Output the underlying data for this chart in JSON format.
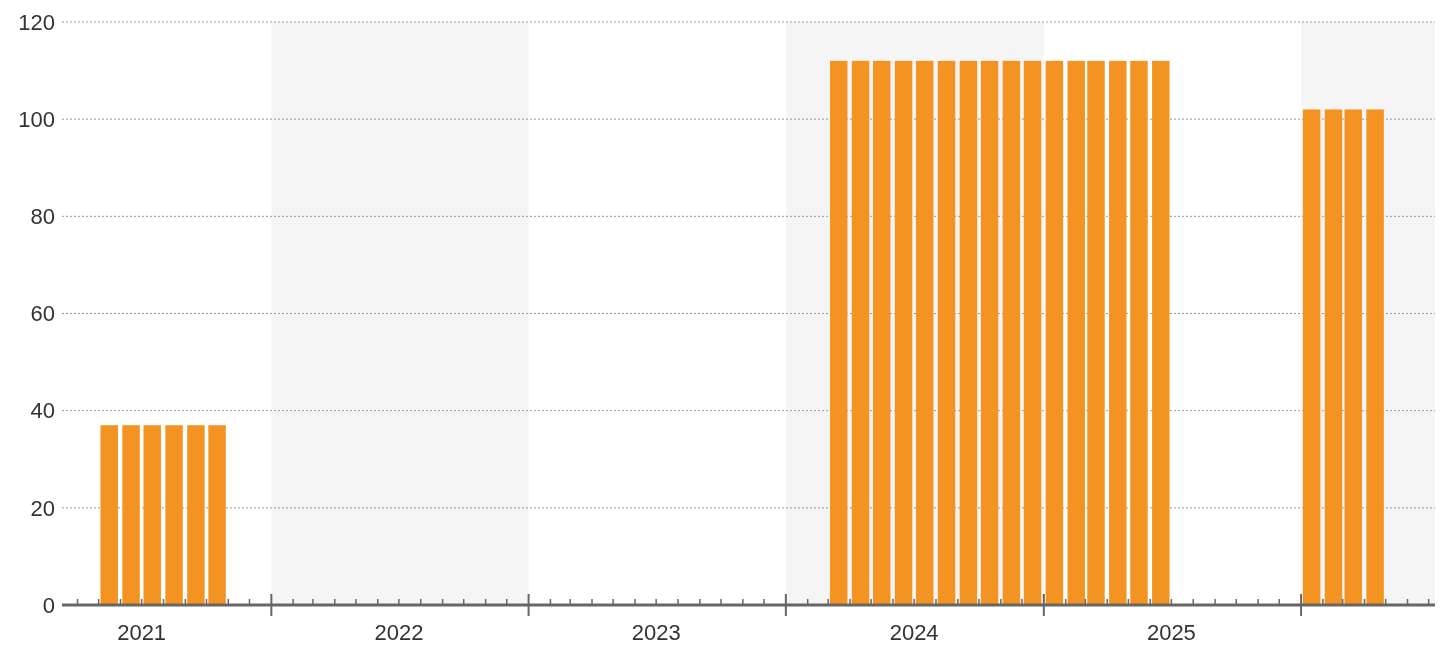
{
  "chart_data": {
    "type": "bar",
    "x": [
      "2021-05-16",
      "2021-06-16",
      "2021-07-16",
      "2021-08-16",
      "2021-09-16",
      "2021-10-16",
      "2024-03-16",
      "2024-04-16",
      "2024-05-16",
      "2024-06-16",
      "2024-07-16",
      "2024-08-16",
      "2024-09-16",
      "2024-10-16",
      "2024-11-16",
      "2024-12-16",
      "2025-01-16",
      "2025-02-16",
      "2025-03-16",
      "2025-04-16",
      "2025-05-16",
      "2025-06-16",
      "2026-01-16",
      "2026-02-16",
      "2026-03-16",
      "2026-04-16"
    ],
    "values": [
      37,
      37,
      37,
      37,
      37,
      37,
      112,
      112,
      112,
      112,
      112,
      112,
      112,
      112,
      112,
      112,
      112,
      112,
      112,
      112,
      112,
      112,
      102,
      102,
      102,
      102
    ],
    "color": "#f39322",
    "xlim": [
      "2021-03-10",
      "2026-07-10"
    ],
    "xticks": [
      {
        "value": "2021-04-01",
        "label": null
      },
      {
        "value": "2021-05-01",
        "label": null
      },
      {
        "value": "2021-06-01",
        "label": null
      },
      {
        "value": "2021-07-01",
        "label": "2021"
      },
      {
        "value": "2021-08-01",
        "label": null
      },
      {
        "value": "2021-09-01",
        "label": null
      },
      {
        "value": "2021-10-01",
        "label": null
      },
      {
        "value": "2021-11-01",
        "label": null
      },
      {
        "value": "2021-12-01",
        "label": null
      },
      {
        "value": "2022-01-01",
        "label": null
      },
      {
        "value": "2022-02-01",
        "label": null
      },
      {
        "value": "2022-03-01",
        "label": null
      },
      {
        "value": "2022-04-01",
        "label": null
      },
      {
        "value": "2022-05-01",
        "label": null
      },
      {
        "value": "2022-06-01",
        "label": null
      },
      {
        "value": "2022-07-01",
        "label": "2022"
      },
      {
        "value": "2022-08-01",
        "label": null
      },
      {
        "value": "2022-09-01",
        "label": null
      },
      {
        "value": "2022-10-01",
        "label": null
      },
      {
        "value": "2022-11-01",
        "label": null
      },
      {
        "value": "2022-12-01",
        "label": null
      },
      {
        "value": "2023-01-01",
        "label": null
      },
      {
        "value": "2023-02-01",
        "label": null
      },
      {
        "value": "2023-03-01",
        "label": null
      },
      {
        "value": "2023-04-01",
        "label": null
      },
      {
        "value": "2023-05-01",
        "label": null
      },
      {
        "value": "2023-06-01",
        "label": null
      },
      {
        "value": "2023-07-01",
        "label": "2023"
      },
      {
        "value": "2023-08-01",
        "label": null
      },
      {
        "value": "2023-09-01",
        "label": null
      },
      {
        "value": "2023-10-01",
        "label": null
      },
      {
        "value": "2023-11-01",
        "label": null
      },
      {
        "value": "2023-12-01",
        "label": null
      },
      {
        "value": "2024-01-01",
        "label": null
      },
      {
        "value": "2024-02-01",
        "label": null
      },
      {
        "value": "2024-03-01",
        "label": null
      },
      {
        "value": "2024-04-01",
        "label": null
      },
      {
        "value": "2024-05-01",
        "label": null
      },
      {
        "value": "2024-06-01",
        "label": null
      },
      {
        "value": "2024-07-01",
        "label": "2024"
      },
      {
        "value": "2024-08-01",
        "label": null
      },
      {
        "value": "2024-09-01",
        "label": null
      },
      {
        "value": "2024-10-01",
        "label": null
      },
      {
        "value": "2024-11-01",
        "label": null
      },
      {
        "value": "2024-12-01",
        "label": null
      },
      {
        "value": "2025-01-01",
        "label": null
      },
      {
        "value": "2025-02-01",
        "label": null
      },
      {
        "value": "2025-03-01",
        "label": null
      },
      {
        "value": "2025-04-01",
        "label": null
      },
      {
        "value": "2025-05-01",
        "label": null
      },
      {
        "value": "2025-06-01",
        "label": null
      },
      {
        "value": "2025-07-01",
        "label": "2025"
      },
      {
        "value": "2025-08-01",
        "label": null
      },
      {
        "value": "2025-09-01",
        "label": null
      },
      {
        "value": "2025-10-01",
        "label": null
      },
      {
        "value": "2025-11-01",
        "label": null
      },
      {
        "value": "2025-12-01",
        "label": null
      },
      {
        "value": "2026-01-01",
        "label": null
      },
      {
        "value": "2026-02-01",
        "label": null
      },
      {
        "value": "2026-03-01",
        "label": null
      },
      {
        "value": "2026-04-01",
        "label": null
      },
      {
        "value": "2026-05-01",
        "label": null
      },
      {
        "value": "2026-06-01",
        "label": null
      },
      {
        "value": "2026-07-01",
        "label": null
      }
    ],
    "ylim": [
      0,
      120
    ],
    "yticks": [
      0,
      20,
      40,
      60,
      80,
      100,
      120
    ],
    "grid": "y",
    "bands": [
      {
        "axis": "x",
        "from": "2022-01-01",
        "to": "2023-01-01",
        "color": "#f5f5f5"
      },
      {
        "axis": "x",
        "from": "2024-01-01",
        "to": "2025-01-01",
        "color": "#f5f5f5"
      },
      {
        "axis": "x",
        "from": "2026-01-01",
        "to": "2026-07-10",
        "color": "#f5f5f5"
      }
    ]
  }
}
